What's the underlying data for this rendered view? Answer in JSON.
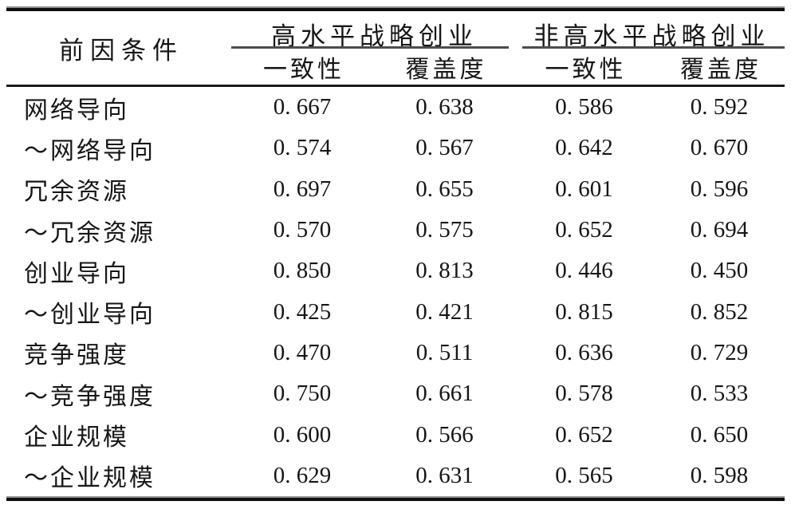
{
  "page": {
    "background": "#ffffff",
    "text_color": "#161616",
    "rule_color": "#0f0f0f"
  },
  "table": {
    "row_header_label": "前因条件",
    "col_groups": [
      {
        "label": "高水平战略创业",
        "subcols": [
          "一致性",
          "覆盖度"
        ]
      },
      {
        "label": "非高水平战略创业",
        "subcols": [
          "一致性",
          "覆盖度"
        ]
      }
    ],
    "rows": [
      {
        "label": "网络导向",
        "values": [
          "0.667",
          "0.638",
          "0.586",
          "0.592"
        ]
      },
      {
        "label": "～网络导向",
        "values": [
          "0.574",
          "0.567",
          "0.642",
          "0.670"
        ]
      },
      {
        "label": "冗余资源",
        "values": [
          "0.697",
          "0.655",
          "0.601",
          "0.596"
        ]
      },
      {
        "label": "～冗余资源",
        "values": [
          "0.570",
          "0.575",
          "0.652",
          "0.694"
        ]
      },
      {
        "label": "创业导向",
        "values": [
          "0.850",
          "0.813",
          "0.446",
          "0.450"
        ]
      },
      {
        "label": "～创业导向",
        "values": [
          "0.425",
          "0.421",
          "0.815",
          "0.852"
        ]
      },
      {
        "label": "竞争强度",
        "values": [
          "0.470",
          "0.511",
          "0.636",
          "0.729"
        ]
      },
      {
        "label": "～竞争强度",
        "values": [
          "0.750",
          "0.661",
          "0.578",
          "0.533"
        ]
      },
      {
        "label": "企业规模",
        "values": [
          "0.600",
          "0.566",
          "0.652",
          "0.650"
        ]
      },
      {
        "label": "～企业规模",
        "values": [
          "0.629",
          "0.631",
          "0.565",
          "0.598"
        ]
      }
    ]
  }
}
